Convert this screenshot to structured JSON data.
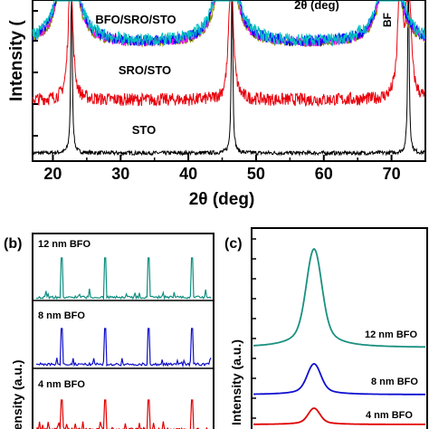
{
  "chart_data": [
    {
      "type": "line",
      "panel": "a",
      "xlabel": "2θ (deg)",
      "ylabel": "Intensity (",
      "xlim": [
        17,
        75
      ],
      "x_ticks": [
        20,
        30,
        40,
        50,
        60,
        70
      ],
      "annotations": [
        "BFO/SRO/STO",
        "SRO/STO",
        "STO",
        "2θ (deg)",
        "BF"
      ],
      "series": [
        {
          "label_text": "STO",
          "color": "#000000",
          "peaks": [
            22.75,
            46.45,
            72.5
          ],
          "baseline": 0.05
        },
        {
          "label_text": "SRO/STO",
          "color": "#e8000b",
          "peaks": [
            22.6,
            46.3,
            71.3,
            72.5
          ],
          "baseline": 0.38
        },
        {
          "label_text": "BFO/SRO/STO",
          "colors": [
            "#8b8b00",
            "#ff00ff",
            "#0000ff",
            "#00c0c0"
          ],
          "peaks": [
            22.2,
            45.6,
            69.8
          ],
          "baseline": 0.72
        }
      ]
    },
    {
      "type": "line",
      "panel": "b",
      "panel_label": "(b)",
      "ylabel": "Intensity (a.u.)",
      "series": [
        {
          "label_text": "12 nm BFO",
          "color": "#0f8f80"
        },
        {
          "label_text": "8 nm BFO",
          "color": "#1010c8"
        },
        {
          "label_text": "4 nm BFO",
          "color": "#e00000"
        }
      ]
    },
    {
      "type": "line",
      "panel": "c",
      "panel_label": "(c)",
      "ylabel": "Intensity (a.u.)",
      "series": [
        {
          "label_text": "12 nm BFO",
          "color": "#1a9080"
        },
        {
          "label_text": "8 nm BFO",
          "color": "#1010d0"
        },
        {
          "label_text": "4 nm BFO",
          "color": "#e00000"
        }
      ]
    }
  ]
}
